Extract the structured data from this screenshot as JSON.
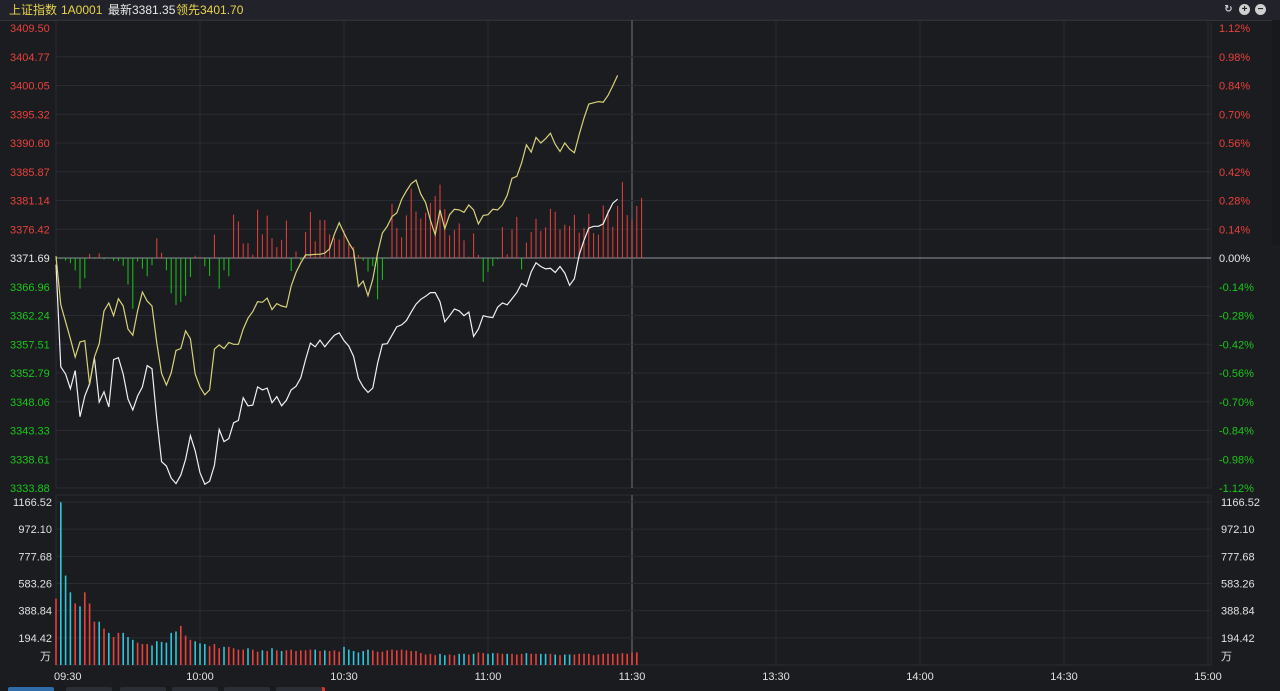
{
  "header": {
    "index_name": "上证指数",
    "code": "1A0001",
    "latest": "最新3381.35",
    "leading": "领先3401.70"
  },
  "header_icons": [
    "refresh-icon",
    "add-icon",
    "minimize-icon"
  ],
  "colors": {
    "background": "#1b1c20",
    "grid": "#2b2c33",
    "up": "#e8413c",
    "down": "#19c719",
    "neutral": "#e8e8e8",
    "price_line": "#f0f0f0",
    "leading_line": "#d8d27a",
    "volume_up": "#e8413c",
    "volume_down": "#2ec6d8",
    "gold_text": "#e8d44a"
  },
  "chart_data": [
    {
      "type": "line",
      "name": "intraday-price",
      "y_ticks_left": [
        "3409.50",
        "3404.77",
        "3400.05",
        "3395.32",
        "3390.60",
        "3385.87",
        "3381.14",
        "3376.42",
        "3371.69",
        "3366.96",
        "3362.24",
        "3357.51",
        "3352.79",
        "3348.06",
        "3343.33",
        "3338.61",
        "3333.88"
      ],
      "y_ticks_right": [
        "1.12%",
        "0.98%",
        "0.84%",
        "0.70%",
        "0.56%",
        "0.42%",
        "0.28%",
        "0.14%",
        "0.00%",
        "-0.14%",
        "-0.28%",
        "-0.42%",
        "-0.56%",
        "-0.70%",
        "-0.84%",
        "-0.98%",
        "-1.12%"
      ],
      "ylim": [
        3333.88,
        3409.5
      ],
      "prev_close": 3371.69,
      "x_ticks": [
        "09:30",
        "10:00",
        "10:30",
        "11:00",
        "11:30",
        "13:30",
        "14:00",
        "14:30",
        "15:00"
      ],
      "series": [
        {
          "values": [
            3370.6,
            3353.8,
            3352.6,
            3350.2,
            3353.2,
            3345.6,
            3349.0,
            3351.0,
            3355.3,
            3348.0,
            3349.7,
            3347.2,
            3355.0,
            3355.3,
            3352.6,
            3348.5,
            3346.7,
            3349.0,
            3350.5,
            3354.0,
            3353.5,
            3345.2,
            3338.2,
            3337.5,
            3335.5,
            3334.6,
            3336.0,
            3338.6,
            3342.5,
            3340.0,
            3336.4,
            3334.5,
            3335.0,
            3337.6,
            3343.5,
            3341.5,
            3342.0,
            3344.6,
            3345.0,
            3348.7,
            3347.4,
            3347.5,
            3350.5,
            3350.0,
            3350.3,
            3347.9,
            3348.9,
            3347.4,
            3348.3,
            3350.0,
            3350.6,
            3352.0,
            3355.0,
            3357.7,
            3357.1,
            3358.2,
            3357.1,
            3358.1,
            3359.0,
            3359.4,
            3358.1,
            3357.2,
            3355.5,
            3351.9,
            3350.5,
            3349.6,
            3350.3,
            3354.4,
            3357.5,
            3357.6,
            3359.0,
            3360.4,
            3360.7,
            3361.4,
            3362.8,
            3364.1,
            3364.9,
            3365.4,
            3366.0,
            3366.0,
            3364.5,
            3361.2,
            3362.2,
            3363.3,
            3363.0,
            3362.2,
            3362.8,
            3358.8,
            3360.0,
            3362.2,
            3362.0,
            3361.9,
            3363.6,
            3364.3,
            3364.0,
            3365.0,
            3366.0,
            3367.5,
            3367.0,
            3369.4,
            3370.9,
            3370.3,
            3369.9,
            3370.0,
            3369.3,
            3370.3,
            3369.2,
            3367.2,
            3368.3,
            3372.2,
            3374.6,
            3376.6,
            3376.9,
            3376.9,
            3377.3,
            3379.1,
            3380.7,
            3381.35
          ]
        },
        {
          "values": [
            3372.0,
            3364.0,
            3361.2,
            3358.4,
            3355.4,
            3357.9,
            3358.1,
            3350.9,
            3355.4,
            3357.6,
            3363.0,
            3364.3,
            3362.2,
            3365.0,
            3363.8,
            3360.0,
            3359.0,
            3363.0,
            3366.1,
            3364.6,
            3363.8,
            3357.7,
            3352.7,
            3350.8,
            3352.8,
            3356.5,
            3356.8,
            3359.7,
            3358.4,
            3352.6,
            3350.5,
            3349.2,
            3350.0,
            3356.7,
            3357.4,
            3356.8,
            3357.8,
            3357.5,
            3357.5,
            3360.0,
            3361.8,
            3362.9,
            3364.5,
            3364.4,
            3365.1,
            3363.2,
            3364.2,
            3363.8,
            3363.6,
            3367.1,
            3369.3,
            3370.9,
            3372.2,
            3372.2,
            3372.3,
            3372.3,
            3372.5,
            3373.2,
            3375.6,
            3377.5,
            3375.8,
            3374.2,
            3372.9,
            3367.0,
            3367.9,
            3365.5,
            3368.2,
            3372.5,
            3375.8,
            3376.9,
            3378.5,
            3379.1,
            3381.3,
            3382.7,
            3383.9,
            3384.5,
            3382.2,
            3380.8,
            3377.9,
            3375.5,
            3379.6,
            3376.5,
            3378.8,
            3379.7,
            3379.6,
            3379.2,
            3380.4,
            3379.6,
            3377.3,
            3378.7,
            3378.8,
            3379.7,
            3379.6,
            3380.4,
            3382.0,
            3384.8,
            3385.1,
            3387.3,
            3390.3,
            3389.1,
            3391.5,
            3390.6,
            3391.3,
            3392.2,
            3390.4,
            3389.2,
            3390.6,
            3389.6,
            3389.0,
            3392.0,
            3394.7,
            3397.0,
            3397.2,
            3397.4,
            3397.3,
            3398.4,
            3400.0,
            3401.7
          ]
        }
      ],
      "momentum_bars": [
        -1.0,
        -0.4,
        -1.0,
        -2.0,
        -4.8,
        -11.8,
        -7.8,
        1.6,
        -0.3,
        1.8,
        -0.6,
        -0.1,
        -1.0,
        -1.2,
        -3.0,
        -10.2,
        -19.5,
        -1.4,
        -4.1,
        -7.0,
        -2.8,
        7.6,
        2.0,
        -4.7,
        -13.6,
        -18.1,
        -16.9,
        -14.5,
        -7.3,
        0.9,
        0.4,
        -3.2,
        -6.9,
        9.0,
        -11.8,
        -4.7,
        -7.0,
        16.7,
        14.1,
        5.6,
        5.7,
        1.3,
        18.6,
        9.1,
        16.3,
        7.6,
        4.2,
        7.0,
        14.4,
        -5.0,
        2.5,
        -0.8,
        10.0,
        17.7,
        6.4,
        14.6,
        14.6,
        9.1,
        7.6,
        7.1,
        10.6,
        5.4,
        4.3,
        1.2,
        -1.0,
        -5.2,
        -3.1,
        -15.9,
        -8.4,
        -0.2,
        20.8,
        11.5,
        8.0,
        16.4,
        26.7,
        17.9,
        15.2,
        17.4,
        21.2,
        23.9,
        28.2,
        18.8,
        8.7,
        10.8,
        13.3,
        6.8,
        0.5,
        9.5,
        1.2,
        -9.2,
        -5.3,
        -3.1,
        -0.5,
        11.9,
        1.4,
        11.0,
        15.8,
        -4.4,
        5.9,
        10.0,
        15.1,
        10.4,
        11.8,
        18.9,
        17.8,
        11.0,
        12.8,
        12.3,
        16.6,
        9.7,
        11.6,
        17.0,
        9.6,
        9.0,
        20.2,
        18.4,
        12.0,
        20.0,
        29.2,
        16.5,
        14.4,
        20.0,
        23.1
      ]
    },
    {
      "type": "bar",
      "name": "volume",
      "unit": "万",
      "y_ticks": [
        "1166.52",
        "972.10",
        "777.68",
        "583.26",
        "388.84",
        "194.42"
      ],
      "ylim": [
        0,
        1166.52
      ],
      "values": [
        475,
        1165,
        640,
        520,
        440,
        420,
        520,
        440,
        310,
        310,
        260,
        230,
        200,
        230,
        230,
        200,
        180,
        160,
        150,
        150,
        140,
        170,
        165,
        160,
        230,
        240,
        280,
        210,
        180,
        170,
        155,
        150,
        135,
        150,
        120,
        130,
        130,
        120,
        110,
        110,
        120,
        110,
        95,
        105,
        100,
        120,
        105,
        100,
        105,
        110,
        100,
        105,
        105,
        110,
        110,
        100,
        105,
        100,
        105,
        95,
        130,
        110,
        100,
        90,
        100,
        110,
        105,
        95,
        95,
        105,
        110,
        105,
        110,
        105,
        100,
        100,
        85,
        75,
        80,
        70,
        80,
        70,
        75,
        70,
        80,
        80,
        75,
        80,
        90,
        85,
        80,
        85,
        85,
        80,
        80,
        80,
        75,
        80,
        85,
        80,
        80,
        80,
        80,
        80,
        75,
        70,
        75,
        75,
        75,
        80,
        80,
        80,
        70,
        75,
        80,
        80,
        80,
        80,
        85,
        80,
        90,
        90
      ]
    }
  ],
  "bottom_tabs_count": 6
}
